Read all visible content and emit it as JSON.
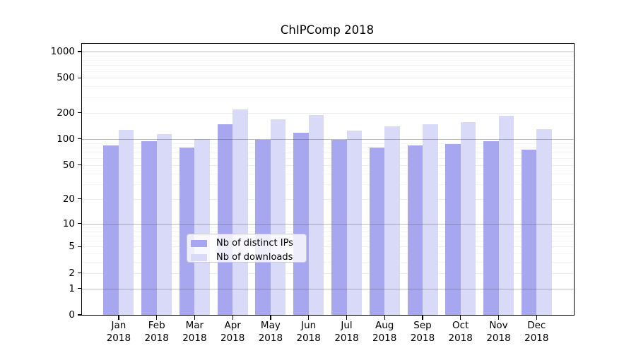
{
  "chart_data": {
    "type": "bar",
    "title": "ChIPComp 2018",
    "x_months": [
      "Jan",
      "Feb",
      "Mar",
      "Apr",
      "May",
      "Jun",
      "Jul",
      "Aug",
      "Sep",
      "Oct",
      "Nov",
      "Dec"
    ],
    "x_year": "2018",
    "categories": [
      "Jan 2018",
      "Feb 2018",
      "Mar 2018",
      "Apr 2018",
      "May 2018",
      "Jun 2018",
      "Jul 2018",
      "Aug 2018",
      "Sep 2018",
      "Oct 2018",
      "Nov 2018",
      "Dec 2018"
    ],
    "series": [
      {
        "name": "Nb of distinct IPs",
        "color": "#a7a7f0",
        "values": [
          84,
          94,
          80,
          148,
          98,
          119,
          98,
          80,
          85,
          87,
          94,
          75
        ]
      },
      {
        "name": "Nb of downloads",
        "color": "#d9d9f8",
        "values": [
          127,
          114,
          100,
          219,
          169,
          189,
          126,
          140,
          149,
          157,
          186,
          130
        ]
      }
    ],
    "y_ticks": [
      0,
      1,
      2,
      5,
      10,
      20,
      50,
      100,
      200,
      500,
      1000
    ],
    "y_minor_gridlines": [
      3,
      4,
      6,
      7,
      8,
      9,
      30,
      40,
      60,
      70,
      80,
      90,
      300,
      400,
      600,
      700,
      800,
      900
    ],
    "y_scale": "log10(value+1)",
    "ylim": [
      0,
      1230
    ],
    "grid": true,
    "legend_position": "inside-bottom-center",
    "colors": {
      "background": "#ffffff",
      "axis": "#000000",
      "grid_decade": "#b9b9bd",
      "grid_minor": "#f0f0f0"
    }
  }
}
